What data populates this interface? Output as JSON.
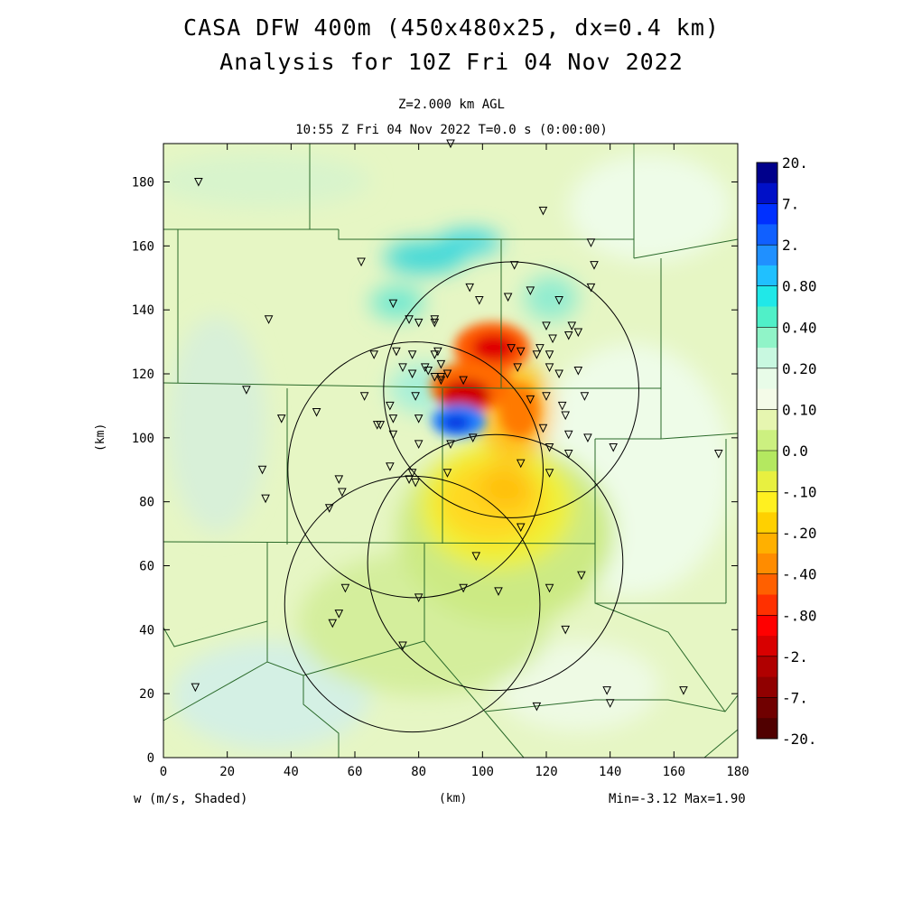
{
  "header": {
    "title_line1": "CASA DFW 400m (450x480x25, dx=0.4 km)",
    "title_line2": "Analysis for 10Z Fri 04 Nov 2022",
    "level": "Z=2.000 km AGL",
    "valid_time": "10:55 Z Fri 04 Nov 2022    T=0.0 s (0:00:00)"
  },
  "footer": {
    "field_label": "w (m/s, Shaded)",
    "x_unit": "(km)",
    "minmax": "Min=-3.12 Max=1.90"
  },
  "chart_data": {
    "type": "heatmap",
    "xlabel": "(km)",
    "ylabel": "(km)",
    "xlim": [
      0,
      180
    ],
    "ylim": [
      0,
      192
    ],
    "xticks": [
      0,
      20,
      40,
      60,
      80,
      100,
      120,
      140,
      160,
      180
    ],
    "yticks": [
      0,
      20,
      40,
      60,
      80,
      100,
      120,
      140,
      160,
      180
    ],
    "field_min": -3.12,
    "field_max": 1.9,
    "colorbar": {
      "labels": [
        "20.",
        "7.",
        "2.",
        "0.80",
        "0.40",
        "0.20",
        "0.10",
        "0.0",
        "-.10",
        "-.20",
        "-.40",
        "-.80",
        "-2.",
        "-7.",
        "-20."
      ],
      "colors": [
        "#00008b",
        "#0010c8",
        "#0030ff",
        "#1060ff",
        "#2090ff",
        "#20c0ff",
        "#20e8e8",
        "#50f0c8",
        "#90f4c8",
        "#c8f8e0",
        "#e8fce8",
        "#f4fbe8",
        "#e6f6b0",
        "#ccf080",
        "#b4e860",
        "#e8f040",
        "#fff020",
        "#ffd000",
        "#ffb000",
        "#ff8c00",
        "#ff6000",
        "#ff3000",
        "#ff0000",
        "#d80000",
        "#b00000",
        "#900000",
        "#700000",
        "#500000"
      ]
    },
    "features": [
      {
        "name": "updraft",
        "x": 89,
        "y": 103,
        "value": 1.9
      },
      {
        "name": "downdraft",
        "x": 92,
        "y": 113,
        "value": -3.12
      },
      {
        "name": "downdraft",
        "x": 102,
        "y": 128,
        "value": -2.5
      },
      {
        "name": "downdraft",
        "x": 114,
        "y": 108,
        "value": -0.6
      },
      {
        "name": "sinking area",
        "x": 100,
        "y": 78,
        "value": -0.3
      }
    ],
    "radar_rings": [
      {
        "x": 78,
        "y": 48,
        "r": 40
      },
      {
        "x": 79,
        "y": 90,
        "r": 40
      },
      {
        "x": 104,
        "y": 61,
        "r": 40
      },
      {
        "x": 109,
        "y": 115,
        "r": 40
      }
    ],
    "stations": [
      [
        90,
        192
      ],
      [
        11,
        180
      ],
      [
        119,
        171
      ],
      [
        134,
        161
      ],
      [
        110,
        154
      ],
      [
        135,
        154
      ],
      [
        62,
        155
      ],
      [
        134,
        147
      ],
      [
        96,
        147
      ],
      [
        115,
        146
      ],
      [
        108,
        144
      ],
      [
        124,
        143
      ],
      [
        99,
        143
      ],
      [
        72,
        142
      ],
      [
        33,
        137
      ],
      [
        77,
        137
      ],
      [
        80,
        136
      ],
      [
        85,
        137
      ],
      [
        85,
        136
      ],
      [
        120,
        135
      ],
      [
        128,
        135
      ],
      [
        122,
        131
      ],
      [
        127,
        132
      ],
      [
        130,
        133
      ],
      [
        109,
        128
      ],
      [
        118,
        128
      ],
      [
        73,
        127
      ],
      [
        66,
        126
      ],
      [
        78,
        126
      ],
      [
        85,
        126
      ],
      [
        86,
        127
      ],
      [
        112,
        127
      ],
      [
        117,
        126
      ],
      [
        121,
        126
      ],
      [
        75,
        122
      ],
      [
        82,
        122
      ],
      [
        83,
        121
      ],
      [
        121,
        122
      ],
      [
        87,
        123
      ],
      [
        111,
        122
      ],
      [
        130,
        121
      ],
      [
        124,
        120
      ],
      [
        78,
        120
      ],
      [
        89,
        120
      ],
      [
        87,
        119
      ],
      [
        85,
        119
      ],
      [
        87,
        118
      ],
      [
        94,
        118
      ],
      [
        26,
        115
      ],
      [
        63,
        113
      ],
      [
        120,
        113
      ],
      [
        132,
        113
      ],
      [
        115,
        112
      ],
      [
        79,
        113
      ],
      [
        125,
        110
      ],
      [
        71,
        110
      ],
      [
        48,
        108
      ],
      [
        126,
        107
      ],
      [
        37,
        106
      ],
      [
        72,
        106
      ],
      [
        67,
        104
      ],
      [
        68,
        104
      ],
      [
        80,
        106
      ],
      [
        119,
        103
      ],
      [
        127,
        101
      ],
      [
        72,
        101
      ],
      [
        133,
        100
      ],
      [
        97,
        100
      ],
      [
        80,
        98
      ],
      [
        90,
        98
      ],
      [
        141,
        97
      ],
      [
        121,
        97
      ],
      [
        127,
        95
      ],
      [
        112,
        92
      ],
      [
        71,
        91
      ],
      [
        31,
        90
      ],
      [
        89,
        89
      ],
      [
        78,
        89
      ],
      [
        121,
        89
      ],
      [
        77,
        87
      ],
      [
        79,
        86
      ],
      [
        55,
        87
      ],
      [
        56,
        83
      ],
      [
        32,
        81
      ],
      [
        52,
        78
      ],
      [
        112,
        72
      ],
      [
        98,
        63
      ],
      [
        131,
        57
      ],
      [
        57,
        53
      ],
      [
        121,
        53
      ],
      [
        94,
        53
      ],
      [
        105,
        52
      ],
      [
        80,
        50
      ],
      [
        55,
        45
      ],
      [
        53,
        42
      ],
      [
        126,
        40
      ],
      [
        75,
        35
      ],
      [
        10,
        22
      ],
      [
        139,
        21
      ],
      [
        163,
        21
      ],
      [
        140,
        17
      ],
      [
        117,
        16
      ],
      [
        174,
        95
      ]
    ]
  }
}
